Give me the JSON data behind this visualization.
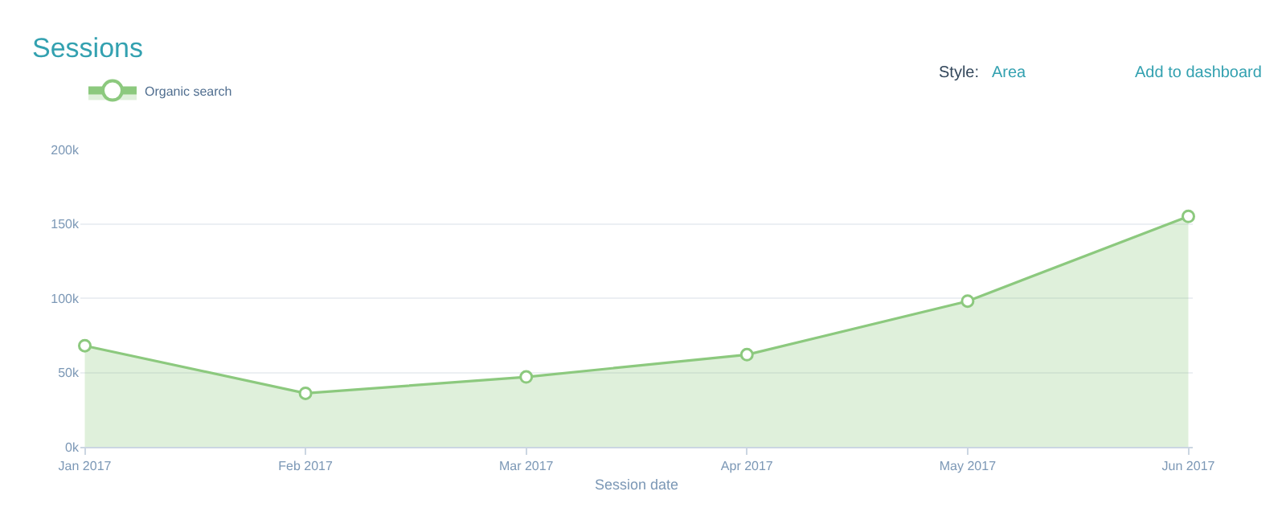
{
  "chart_data": {
    "type": "area",
    "title": "Sessions",
    "xlabel": "Session date",
    "annotations": [
      "Style:",
      "Area",
      "Add to dashboard"
    ],
    "categories": [
      "Jan 2017",
      "Feb 2017",
      "Mar 2017",
      "Apr 2017",
      "May 2017",
      "Jun 2017"
    ],
    "series": [
      {
        "name": "Organic search",
        "color": "#8cc97e",
        "values": [
          68000,
          36000,
          47000,
          62000,
          98000,
          155000
        ]
      }
    ],
    "ylim": [
      0,
      200000
    ],
    "yticks": [
      {
        "value": 0,
        "label": "0k"
      },
      {
        "value": 50000,
        "label": "50k"
      },
      {
        "value": 100000,
        "label": "100k"
      },
      {
        "value": 150000,
        "label": "150k"
      },
      {
        "value": 200000,
        "label": "200k"
      }
    ],
    "grid": "y",
    "legend": "top left",
    "marker": "circle"
  }
}
